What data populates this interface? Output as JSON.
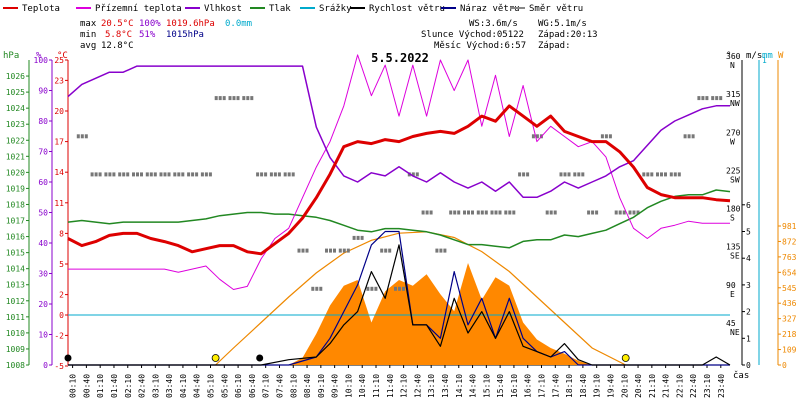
{
  "legend": [
    {
      "name": "Teplota",
      "color": "#dd0000"
    },
    {
      "name": "Přízemní teplota",
      "color": "#dd00dd"
    },
    {
      "name": "Vlhkost",
      "color": "#8800cc"
    },
    {
      "name": "Tlak",
      "color": "#228822"
    },
    {
      "name": "Srážky",
      "color": "#00aacc"
    },
    {
      "name": "Rychlost větru",
      "color": "#000000"
    },
    {
      "name": "Náraz větru",
      "color": "#000088"
    },
    {
      "name": "Směr větru",
      "color": "#888888"
    }
  ],
  "stats": {
    "max": {
      "label": "max",
      "temp": "20.5°C",
      "hum": "100%",
      "press": "1019.6hPa",
      "precip": "0.0mm"
    },
    "min": {
      "label": "min",
      "temp": "5.8°C",
      "hum": "51%",
      "press": "1015hPa"
    },
    "avg": {
      "label": "avg",
      "temp": "12.8°C"
    }
  },
  "wind_info": {
    "ws": "WS:3.6m/s",
    "wg": "WG:5.1m/s"
  },
  "sun_info": {
    "sun": "Slunce Východ:05122",
    "sun_set": "Západ:20:13",
    "moon": "Měsíc Východ:6:57",
    "moon_set": "Západ:"
  },
  "date_title": "5.5.2022",
  "axis_units": {
    "hpa": "hPa",
    "pct": "%",
    "degc": "°C",
    "deg": "°",
    "ms": "m/s",
    "mm": "mm",
    "w": "W",
    "cas": "čas"
  },
  "colors": {
    "temp": "#dd0000",
    "ground": "#dd00dd",
    "hum": "#8800cc",
    "press": "#228822",
    "precip": "#00aacc",
    "wind": "#000000",
    "gust": "#000088",
    "dir": "#777777",
    "solar": "#ff8800",
    "sun_curve": "#ee8800",
    "marker": "#ffee00"
  },
  "chart_data": {
    "type": "line",
    "x_unit": "hour",
    "x_range": [
      0,
      24
    ],
    "x_tick_labels": [
      "00:10",
      "00:40",
      "01:10",
      "01:40",
      "02:10",
      "02:40",
      "03:10",
      "03:40",
      "04:10",
      "04:40",
      "05:10",
      "05:40",
      "06:10",
      "06:40",
      "07:10",
      "07:40",
      "08:10",
      "08:40",
      "09:10",
      "09:40",
      "10:10",
      "10:40",
      "11:10",
      "11:40",
      "12:10",
      "12:40",
      "13:10",
      "13:40",
      "14:10",
      "14:40",
      "15:10",
      "15:40",
      "16:10",
      "16:40",
      "17:10",
      "17:40",
      "18:10",
      "18:40",
      "19:10",
      "19:40",
      "20:10",
      "20:40",
      "21:10",
      "21:40",
      "22:10",
      "22:40",
      "23:10",
      "23:40"
    ],
    "axes": {
      "pressure_hpa": {
        "range": [
          1008,
          1027
        ],
        "ticks": [
          1008,
          1009,
          1010,
          1011,
          1012,
          1013,
          1014,
          1015,
          1016,
          1017,
          1018,
          1019,
          1020,
          1021,
          1022,
          1023,
          1024,
          1025,
          1026
        ]
      },
      "humidity_pct": {
        "range": [
          0,
          100
        ],
        "ticks": [
          0,
          10,
          20,
          30,
          40,
          50,
          60,
          70,
          80,
          90,
          100
        ]
      },
      "temperature_c": {
        "range": [
          -5,
          25
        ],
        "ticks": [
          -5,
          -2,
          0,
          2,
          5,
          8,
          11,
          14,
          17,
          20,
          23,
          25
        ]
      },
      "wind_dir_deg": {
        "range": [
          0,
          360
        ],
        "ticks": [
          {
            "v": 360,
            "l": "360",
            "c": "N"
          },
          {
            "v": 315,
            "l": "315",
            "c": "NW"
          },
          {
            "v": 270,
            "l": "270",
            "c": "W"
          },
          {
            "v": 225,
            "l": "225",
            "c": "SW"
          },
          {
            "v": 180,
            "l": "180",
            "c": "S"
          },
          {
            "v": 135,
            "l": "135",
            "c": "SE"
          },
          {
            "v": 90,
            "l": "90",
            "c": "E"
          },
          {
            "v": 45,
            "l": "45",
            "c": "NE"
          }
        ]
      },
      "wind_ms": {
        "range": [
          0,
          6
        ],
        "ticks": [
          0,
          1,
          2,
          3,
          4,
          5,
          6
        ]
      },
      "precip_mm": {
        "range": [
          0,
          1
        ],
        "ticks": [
          1
        ]
      },
      "solar_w": {
        "range": [
          0,
          1000
        ],
        "ticks": [
          0,
          109,
          218,
          327,
          436,
          545,
          654,
          763,
          872,
          981
        ]
      }
    },
    "series": [
      {
        "name": "Teplota",
        "axis": "temperature_c",
        "x": [
          0,
          0.5,
          1,
          1.5,
          2,
          2.5,
          3,
          3.5,
          4,
          4.5,
          5,
          5.5,
          6,
          6.5,
          7,
          7.5,
          8,
          8.5,
          9,
          9.5,
          10,
          10.5,
          11,
          11.5,
          12,
          12.5,
          13,
          13.5,
          14,
          14.5,
          15,
          15.5,
          16,
          16.5,
          17,
          17.5,
          18,
          18.5,
          19,
          19.5,
          20,
          20.5,
          21,
          21.5,
          22,
          22.5,
          23,
          23.5,
          24
        ],
        "values": [
          7.5,
          6.8,
          7.2,
          7.8,
          8.0,
          8.0,
          7.5,
          7.2,
          6.8,
          6.2,
          6.5,
          6.8,
          6.8,
          6.2,
          6.0,
          7.0,
          8.0,
          9.5,
          11.5,
          13.8,
          16.5,
          17.0,
          16.8,
          17.2,
          17.0,
          17.5,
          17.8,
          18.0,
          17.8,
          18.5,
          19.5,
          19.0,
          20.5,
          19.5,
          18.5,
          19.5,
          18.0,
          17.5,
          17.0,
          17.0,
          16.0,
          14.5,
          12.5,
          11.8,
          11.5,
          11.5,
          11.5,
          11.3,
          11.2
        ]
      },
      {
        "name": "Přízemní teplota",
        "axis": "temperature_c",
        "x": [
          0,
          0.5,
          1,
          1.5,
          2,
          2.5,
          3,
          3.5,
          4,
          4.5,
          5,
          5.5,
          6,
          6.5,
          7,
          7.5,
          8,
          8.5,
          9,
          9.5,
          10,
          10.5,
          11,
          11.5,
          12,
          12.5,
          13,
          13.5,
          14,
          14.5,
          15,
          15.5,
          16,
          16.5,
          17,
          17.5,
          18,
          18.5,
          19,
          19.5,
          20,
          20.5,
          21,
          21.5,
          22,
          22.5,
          23,
          23.5,
          24
        ],
        "values": [
          4.5,
          4.5,
          4.5,
          4.5,
          4.5,
          4.5,
          4.5,
          4.5,
          4.2,
          4.5,
          4.8,
          3.5,
          2.5,
          2.8,
          5.5,
          7.5,
          8.5,
          11.5,
          14.5,
          17.0,
          20.5,
          25.5,
          21.5,
          24.5,
          19.5,
          24.5,
          19.5,
          25.0,
          22.0,
          25.0,
          18.5,
          23.5,
          17.5,
          22.5,
          17.0,
          18.5,
          17.5,
          16.5,
          17.0,
          15.5,
          11.5,
          8.5,
          7.5,
          8.5,
          8.8,
          9.2,
          9.0,
          9.0,
          9.0
        ]
      },
      {
        "name": "Vlhkost",
        "axis": "humidity_pct",
        "x": [
          0,
          0.5,
          1,
          1.5,
          2,
          2.5,
          3,
          3.5,
          4,
          4.5,
          5,
          5.5,
          6,
          6.5,
          7,
          7.5,
          8,
          8.5,
          9,
          9.5,
          10,
          10.5,
          11,
          11.5,
          12,
          12.5,
          13,
          13.5,
          14,
          14.5,
          15,
          15.5,
          16,
          16.5,
          17,
          17.5,
          18,
          18.5,
          19,
          19.5,
          20,
          20.5,
          21,
          21.5,
          22,
          22.5,
          23,
          23.5,
          24
        ],
        "values": [
          88,
          92,
          94,
          96,
          96,
          98,
          98,
          98,
          98,
          98,
          98,
          98,
          98,
          98,
          98,
          98,
          98,
          98,
          78,
          68,
          62,
          60,
          63,
          62,
          65,
          62,
          60,
          63,
          60,
          58,
          60,
          57,
          60,
          55,
          55,
          57,
          60,
          58,
          60,
          62,
          65,
          67,
          72,
          77,
          80,
          82,
          84,
          85,
          85
        ]
      },
      {
        "name": "Tlak",
        "axis": "pressure_hpa",
        "x": [
          0,
          0.5,
          1,
          1.5,
          2,
          2.5,
          3,
          3.5,
          4,
          4.5,
          5,
          5.5,
          6,
          6.5,
          7,
          7.5,
          8,
          8.5,
          9,
          9.5,
          10,
          10.5,
          11,
          11.5,
          12,
          12.5,
          13,
          13.5,
          14,
          14.5,
          15,
          15.5,
          16,
          16.5,
          17,
          17.5,
          18,
          18.5,
          19,
          19.5,
          20,
          20.5,
          21,
          21.5,
          22,
          22.5,
          23,
          23.5,
          24
        ],
        "values": [
          1016.9,
          1017.0,
          1016.9,
          1016.8,
          1016.9,
          1016.9,
          1016.9,
          1016.9,
          1016.9,
          1017.0,
          1017.1,
          1017.3,
          1017.4,
          1017.5,
          1017.5,
          1017.4,
          1017.4,
          1017.3,
          1017.2,
          1017.0,
          1016.7,
          1016.4,
          1016.3,
          1016.5,
          1016.5,
          1016.4,
          1016.3,
          1016.1,
          1015.8,
          1015.5,
          1015.5,
          1015.4,
          1015.3,
          1015.7,
          1015.8,
          1015.8,
          1016.1,
          1016.0,
          1016.2,
          1016.4,
          1016.8,
          1017.2,
          1017.8,
          1018.2,
          1018.5,
          1018.6,
          1018.6,
          1018.9,
          1018.8
        ]
      },
      {
        "name": "Rychlost větru",
        "axis": "wind_ms",
        "x": [
          0,
          1,
          2,
          3,
          4,
          5,
          6,
          7,
          8,
          9,
          9.5,
          10,
          10.5,
          11,
          11.5,
          12,
          12.5,
          13,
          13.5,
          14,
          14.5,
          15,
          15.5,
          16,
          16.5,
          17,
          17.5,
          18,
          18.5,
          19,
          20,
          21,
          22,
          23,
          23.5,
          24
        ],
        "values": [
          0,
          0,
          0,
          0,
          0,
          0,
          0,
          0,
          0.2,
          0.3,
          0.8,
          1.5,
          2.0,
          3.5,
          2.5,
          4.5,
          1.5,
          1.5,
          0.7,
          2.5,
          1.2,
          2.0,
          1.0,
          2.0,
          0.7,
          0.5,
          0.3,
          0.8,
          0.2,
          0,
          0,
          0,
          0,
          0,
          0.3,
          0
        ]
      },
      {
        "name": "Náraz větru",
        "axis": "wind_ms",
        "x": [
          0,
          1,
          2,
          3,
          4,
          5,
          6,
          7,
          8,
          9,
          9.5,
          10,
          10.5,
          11,
          11.5,
          12,
          12.5,
          13,
          13.5,
          14,
          14.5,
          15,
          15.5,
          16,
          16.5,
          17,
          17.5,
          18,
          18.5,
          19,
          20,
          21,
          22,
          23,
          24
        ],
        "values": [
          0,
          0,
          0,
          0,
          0,
          0,
          0,
          0,
          0,
          0.3,
          1.0,
          2.0,
          3.0,
          4.5,
          5.0,
          5.0,
          1.5,
          1.5,
          1.0,
          3.5,
          1.5,
          2.5,
          1.0,
          2.5,
          1.0,
          0.5,
          0.3,
          0.5,
          0,
          0,
          0,
          0,
          0,
          0,
          0
        ]
      },
      {
        "name": "Směr větru",
        "axis": "wind_dir_deg",
        "x": [
          0.5,
          1,
          1.5,
          2,
          2.5,
          3,
          3.5,
          4,
          4.5,
          5,
          5.5,
          6,
          6.5,
          7,
          7.5,
          8,
          8.5,
          9,
          9.5,
          10,
          10.5,
          11,
          11.5,
          12,
          12.5,
          13,
          13.5,
          14,
          14.5,
          15,
          15.5,
          16,
          16.5,
          17,
          17.5,
          18,
          18.5,
          19,
          19.5,
          20,
          20.5,
          21,
          21.5,
          22,
          22.5,
          23,
          23.5
        ],
        "values": [
          270,
          225,
          225,
          225,
          225,
          225,
          225,
          225,
          225,
          225,
          315,
          315,
          315,
          225,
          225,
          225,
          135,
          90,
          135,
          135,
          150,
          90,
          135,
          90,
          225,
          180,
          135,
          180,
          180,
          180,
          180,
          180,
          225,
          270,
          180,
          225,
          225,
          180,
          270,
          180,
          180,
          225,
          225,
          225,
          270,
          315,
          315
        ]
      },
      {
        "name": "Srážky",
        "axis": "precip_mm",
        "x": [
          0,
          24
        ],
        "values": [
          0,
          0
        ]
      },
      {
        "name": "solar",
        "axis": "solar_w",
        "x": [
          0,
          1,
          2,
          3,
          4,
          5,
          6,
          7,
          8,
          8.5,
          9,
          9.5,
          10,
          10.5,
          11,
          11.5,
          12,
          12.5,
          13,
          13.5,
          14,
          14.5,
          15,
          15.5,
          16,
          16.5,
          17,
          17.5,
          18,
          18.5,
          19,
          20,
          21,
          22,
          23,
          24
        ],
        "values": [
          0,
          0,
          0,
          0,
          0,
          0,
          0,
          0,
          0,
          50,
          220,
          420,
          560,
          600,
          300,
          520,
          600,
          560,
          640,
          500,
          380,
          720,
          460,
          620,
          560,
          300,
          180,
          120,
          80,
          30,
          0,
          0,
          0,
          0,
          0,
          0
        ]
      },
      {
        "name": "theoretical_sun",
        "axis": "solar_w",
        "x": [
          5.35,
          6,
          7,
          8,
          9,
          10,
          11,
          12,
          13,
          14,
          15,
          16,
          17,
          18,
          19,
          20.22
        ],
        "values": [
          0,
          120,
          300,
          480,
          650,
          790,
          880,
          930,
          940,
          900,
          800,
          660,
          480,
          300,
          120,
          0
        ]
      }
    ],
    "markers": [
      {
        "kind": "sunrise",
        "x": 5.35
      },
      {
        "kind": "sunset",
        "x": 20.22
      },
      {
        "kind": "moonrise",
        "x": 6.95
      },
      {
        "kind": "moonset",
        "x": 0
      }
    ]
  }
}
